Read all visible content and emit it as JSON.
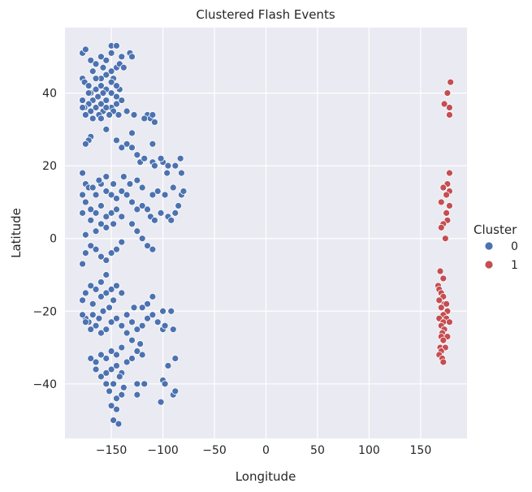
{
  "chart_data": {
    "type": "scatter",
    "title": "Clustered Flash Events",
    "xlabel": "Longitude",
    "ylabel": "Latitude",
    "xlim": [
      -195,
      195
    ],
    "ylim": [
      -55,
      58
    ],
    "xticks": [
      -150,
      -100,
      -50,
      0,
      50,
      100,
      150
    ],
    "xtick_labels": [
      "−150",
      "−100",
      "−50",
      "0",
      "50",
      "100",
      "150"
    ],
    "yticks": [
      -40,
      -20,
      0,
      20,
      40
    ],
    "ytick_labels": [
      "−40",
      "−20",
      "0",
      "20",
      "40"
    ],
    "grid": true,
    "legend": {
      "title": "Cluster",
      "placement": "right"
    },
    "series": [
      {
        "name": "0",
        "color": "#4c72b0",
        "points": [
          [
            -178,
            51
          ],
          [
            -175,
            52
          ],
          [
            -170,
            49
          ],
          [
            -165,
            48
          ],
          [
            -160,
            50
          ],
          [
            -155,
            49
          ],
          [
            -150,
            53
          ],
          [
            -145,
            53
          ],
          [
            -150,
            51
          ],
          [
            -132,
            51
          ],
          [
            -140,
            50
          ],
          [
            -158,
            47
          ],
          [
            -168,
            46
          ],
          [
            -155,
            45
          ],
          [
            -148,
            44
          ],
          [
            -145,
            47
          ],
          [
            -142,
            48
          ],
          [
            -138,
            47
          ],
          [
            -130,
            50
          ],
          [
            -160,
            44
          ],
          [
            -178,
            44
          ],
          [
            -176,
            43
          ],
          [
            -172,
            42
          ],
          [
            -170,
            40
          ],
          [
            -165,
            41
          ],
          [
            -160,
            42
          ],
          [
            -155,
            41
          ],
          [
            -150,
            40
          ],
          [
            -145,
            39
          ],
          [
            -142,
            41
          ],
          [
            -150,
            43
          ],
          [
            -158,
            40
          ],
          [
            -163,
            39
          ],
          [
            -168,
            38
          ],
          [
            -172,
            37
          ],
          [
            -178,
            38
          ],
          [
            -176,
            36
          ],
          [
            -170,
            35
          ],
          [
            -165,
            36
          ],
          [
            -160,
            37
          ],
          [
            -155,
            38
          ],
          [
            -150,
            36
          ],
          [
            -145,
            37
          ],
          [
            -140,
            38
          ],
          [
            -148,
            35
          ],
          [
            -152,
            34
          ],
          [
            -158,
            35
          ],
          [
            -162,
            34
          ],
          [
            -168,
            33
          ],
          [
            -175,
            34
          ],
          [
            -178,
            36
          ],
          [
            -172,
            40
          ],
          [
            -145,
            42
          ],
          [
            -150,
            46
          ],
          [
            -165,
            44
          ],
          [
            -155,
            36
          ],
          [
            -160,
            33
          ],
          [
            -143,
            34
          ],
          [
            -135,
            35
          ],
          [
            -128,
            34
          ],
          [
            -115,
            34
          ],
          [
            -112,
            33
          ],
          [
            -110,
            34
          ],
          [
            -118,
            33
          ],
          [
            -108,
            32
          ],
          [
            -130,
            29
          ],
          [
            -135,
            26
          ],
          [
            -130,
            25
          ],
          [
            -125,
            23
          ],
          [
            -122,
            21
          ],
          [
            -118,
            22
          ],
          [
            -110,
            21
          ],
          [
            -108,
            20
          ],
          [
            -100,
            21
          ],
          [
            -95,
            20
          ],
          [
            -102,
            22
          ],
          [
            -110,
            26
          ],
          [
            -96,
            18
          ],
          [
            -88,
            20
          ],
          [
            -83,
            22
          ],
          [
            -82,
            18
          ],
          [
            -145,
            27
          ],
          [
            -140,
            25
          ],
          [
            -155,
            30
          ],
          [
            -170,
            28
          ],
          [
            -172,
            27
          ],
          [
            -175,
            26
          ],
          [
            -178,
            18
          ],
          [
            -175,
            15
          ],
          [
            -172,
            14
          ],
          [
            -165,
            12
          ],
          [
            -160,
            15
          ],
          [
            -155,
            13
          ],
          [
            -150,
            12
          ],
          [
            -145,
            11
          ],
          [
            -140,
            13
          ],
          [
            -148,
            15
          ],
          [
            -155,
            17
          ],
          [
            -162,
            16
          ],
          [
            -168,
            14
          ],
          [
            -178,
            12
          ],
          [
            -175,
            10
          ],
          [
            -170,
            8
          ],
          [
            -165,
            7
          ],
          [
            -160,
            9
          ],
          [
            -155,
            6
          ],
          [
            -150,
            7
          ],
          [
            -145,
            8
          ],
          [
            -140,
            6
          ],
          [
            -148,
            4
          ],
          [
            -155,
            3
          ],
          [
            -160,
            4
          ],
          [
            -165,
            2
          ],
          [
            -170,
            5
          ],
          [
            -175,
            1
          ],
          [
            -178,
            7
          ],
          [
            -135,
            12
          ],
          [
            -130,
            10
          ],
          [
            -125,
            8
          ],
          [
            -120,
            9
          ],
          [
            -115,
            8
          ],
          [
            -112,
            6
          ],
          [
            -108,
            5
          ],
          [
            -102,
            7
          ],
          [
            -95,
            6
          ],
          [
            -92,
            5
          ],
          [
            -88,
            7
          ],
          [
            -85,
            9
          ],
          [
            -82,
            12
          ],
          [
            -80,
            13
          ],
          [
            -90,
            14
          ],
          [
            -98,
            12
          ],
          [
            -105,
            13
          ],
          [
            -110,
            12
          ],
          [
            -120,
            14
          ],
          [
            -125,
            16
          ],
          [
            -132,
            15
          ],
          [
            -138,
            17
          ],
          [
            -130,
            4
          ],
          [
            -125,
            2
          ],
          [
            -120,
            0
          ],
          [
            -115,
            -2
          ],
          [
            -110,
            -3
          ],
          [
            -140,
            -1
          ],
          [
            -145,
            -3
          ],
          [
            -150,
            -4
          ],
          [
            -155,
            -6
          ],
          [
            -160,
            -5
          ],
          [
            -165,
            -3
          ],
          [
            -170,
            -2
          ],
          [
            -175,
            -4
          ],
          [
            -178,
            -7
          ],
          [
            -155,
            -10
          ],
          [
            -160,
            -12
          ],
          [
            -165,
            -14
          ],
          [
            -170,
            -13
          ],
          [
            -175,
            -15
          ],
          [
            -178,
            -17
          ],
          [
            -168,
            -18
          ],
          [
            -160,
            -16
          ],
          [
            -155,
            -15
          ],
          [
            -150,
            -14
          ],
          [
            -145,
            -13
          ],
          [
            -140,
            -15
          ],
          [
            -148,
            -17
          ],
          [
            -152,
            -19
          ],
          [
            -158,
            -20
          ],
          [
            -162,
            -22
          ],
          [
            -168,
            -21
          ],
          [
            -172,
            -23
          ],
          [
            -175,
            -22
          ],
          [
            -178,
            -21
          ],
          [
            -170,
            -25
          ],
          [
            -165,
            -24
          ],
          [
            -160,
            -26
          ],
          [
            -155,
            -25
          ],
          [
            -150,
            -23
          ],
          [
            -145,
            -22
          ],
          [
            -140,
            -24
          ],
          [
            -135,
            -21
          ],
          [
            -130,
            -23
          ],
          [
            -125,
            -25
          ],
          [
            -120,
            -24
          ],
          [
            -115,
            -22
          ],
          [
            -110,
            -21
          ],
          [
            -105,
            -23
          ],
          [
            -100,
            -25
          ],
          [
            -98,
            -24
          ],
          [
            -110,
            -16
          ],
          [
            -115,
            -18
          ],
          [
            -120,
            -19
          ],
          [
            -100,
            -20
          ],
          [
            -92,
            -20
          ],
          [
            -90,
            -25
          ],
          [
            -95,
            -35
          ],
          [
            -140,
            -30
          ],
          [
            -145,
            -32
          ],
          [
            -150,
            -31
          ],
          [
            -155,
            -33
          ],
          [
            -160,
            -32
          ],
          [
            -165,
            -34
          ],
          [
            -170,
            -33
          ],
          [
            -165,
            -36
          ],
          [
            -160,
            -38
          ],
          [
            -155,
            -37
          ],
          [
            -150,
            -36
          ],
          [
            -145,
            -35
          ],
          [
            -140,
            -37
          ],
          [
            -135,
            -34
          ],
          [
            -130,
            -33
          ],
          [
            -125,
            -31
          ],
          [
            -120,
            -32
          ],
          [
            -142,
            -38
          ],
          [
            -148,
            -40
          ],
          [
            -152,
            -42
          ],
          [
            -145,
            -44
          ],
          [
            -140,
            -43
          ],
          [
            -138,
            -41
          ],
          [
            -145,
            -47
          ],
          [
            -150,
            -46
          ],
          [
            -148,
            -50
          ],
          [
            -143,
            -51
          ],
          [
            -125,
            -40
          ],
          [
            -118,
            -40
          ],
          [
            -125,
            -43
          ],
          [
            -100,
            -39
          ],
          [
            -98,
            -40
          ],
          [
            -102,
            -45
          ],
          [
            -90,
            -43
          ],
          [
            -88,
            -42
          ],
          [
            -130,
            -28
          ],
          [
            -135,
            -26
          ],
          [
            -128,
            -19
          ],
          [
            -122,
            -29
          ],
          [
            -88,
            -33
          ],
          [
            -175,
            -23
          ],
          [
            -155,
            -40
          ]
        ]
      },
      {
        "name": "1",
        "color": "#c44e52",
        "points": [
          [
            179,
            43
          ],
          [
            176,
            40
          ],
          [
            173,
            37
          ],
          [
            178,
            36
          ],
          [
            178,
            34
          ],
          [
            178,
            18
          ],
          [
            176,
            15
          ],
          [
            172,
            14
          ],
          [
            178,
            13
          ],
          [
            175,
            12
          ],
          [
            170,
            10
          ],
          [
            178,
            9
          ],
          [
            175,
            7
          ],
          [
            176,
            5
          ],
          [
            172,
            4
          ],
          [
            170,
            3
          ],
          [
            174,
            0
          ],
          [
            169,
            -9
          ],
          [
            172,
            -11
          ],
          [
            167,
            -13
          ],
          [
            168,
            -14
          ],
          [
            170,
            -15
          ],
          [
            172,
            -16
          ],
          [
            168,
            -17
          ],
          [
            173,
            -18
          ],
          [
            175,
            -18
          ],
          [
            170,
            -19
          ],
          [
            176,
            -20
          ],
          [
            172,
            -21
          ],
          [
            168,
            -22
          ],
          [
            175,
            -22
          ],
          [
            172,
            -23
          ],
          [
            178,
            -23
          ],
          [
            170,
            -24
          ],
          [
            173,
            -25
          ],
          [
            171,
            -26
          ],
          [
            170,
            -27
          ],
          [
            176,
            -27
          ],
          [
            172,
            -28
          ],
          [
            169,
            -30
          ],
          [
            174,
            -30
          ],
          [
            170,
            -31
          ],
          [
            168,
            -32
          ],
          [
            171,
            -33
          ],
          [
            172,
            -34
          ]
        ]
      }
    ]
  }
}
